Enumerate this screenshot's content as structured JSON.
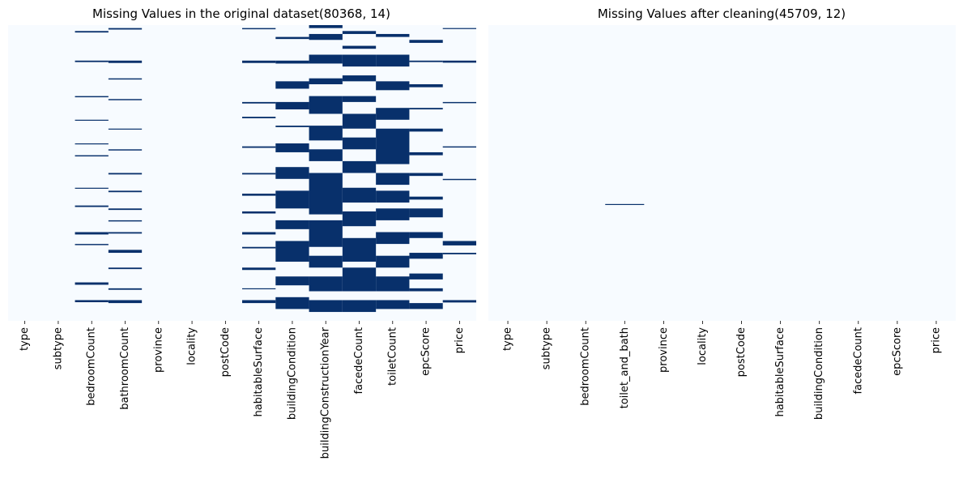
{
  "charts": [
    {
      "type": "heatmap",
      "title": "Missing Values in the original dataset(80368, 14)",
      "columns": [
        "type",
        "subtype",
        "bedroomCount",
        "bathroomCount",
        "province",
        "locality",
        "postCode",
        "habitableSurface",
        "buildingCondition",
        "buildingConstructionYear",
        "facedeCount",
        "toiletCount",
        "epcScore",
        "price"
      ],
      "value_legend": {
        "present": 0,
        "missing": 1
      },
      "missing_rows": {
        "bedroomCount": [
          [
            0.02,
            0.025
          ],
          [
            0.12,
            0.125
          ],
          [
            0.24,
            0.244
          ],
          [
            0.32,
            0.323
          ],
          [
            0.4,
            0.403
          ],
          [
            0.44,
            0.444
          ],
          [
            0.55,
            0.553
          ],
          [
            0.61,
            0.615
          ],
          [
            0.7,
            0.708
          ],
          [
            0.74,
            0.744
          ],
          [
            0.87,
            0.878
          ],
          [
            0.93,
            0.937
          ]
        ],
        "bathroomCount": [
          [
            0.01,
            0.015
          ],
          [
            0.12,
            0.128
          ],
          [
            0.18,
            0.184
          ],
          [
            0.25,
            0.254
          ],
          [
            0.35,
            0.353
          ],
          [
            0.42,
            0.424
          ],
          [
            0.5,
            0.505
          ],
          [
            0.56,
            0.565
          ],
          [
            0.62,
            0.625
          ],
          [
            0.66,
            0.664
          ],
          [
            0.7,
            0.705
          ],
          [
            0.76,
            0.77
          ],
          [
            0.82,
            0.825
          ],
          [
            0.89,
            0.895
          ],
          [
            0.93,
            0.94
          ]
        ],
        "habitableSurface": [
          [
            0.01,
            0.014
          ],
          [
            0.12,
            0.128
          ],
          [
            0.26,
            0.265
          ],
          [
            0.31,
            0.315
          ],
          [
            0.41,
            0.415
          ],
          [
            0.5,
            0.505
          ],
          [
            0.57,
            0.577
          ],
          [
            0.63,
            0.637
          ],
          [
            0.7,
            0.708
          ],
          [
            0.75,
            0.755
          ],
          [
            0.82,
            0.828
          ],
          [
            0.89,
            0.893
          ],
          [
            0.93,
            0.94
          ]
        ],
        "buildingCondition": [
          [
            0.04,
            0.047
          ],
          [
            0.12,
            0.13
          ],
          [
            0.19,
            0.215
          ],
          [
            0.26,
            0.285
          ],
          [
            0.34,
            0.345
          ],
          [
            0.4,
            0.43
          ],
          [
            0.48,
            0.52
          ],
          [
            0.56,
            0.62
          ],
          [
            0.66,
            0.69
          ],
          [
            0.73,
            0.8
          ],
          [
            0.85,
            0.88
          ],
          [
            0.92,
            0.96
          ]
        ],
        "buildingConstructionYear": [
          [
            0.0,
            0.01
          ],
          [
            0.03,
            0.05
          ],
          [
            0.1,
            0.13
          ],
          [
            0.18,
            0.2
          ],
          [
            0.24,
            0.3
          ],
          [
            0.34,
            0.39
          ],
          [
            0.42,
            0.46
          ],
          [
            0.5,
            0.64
          ],
          [
            0.66,
            0.75
          ],
          [
            0.78,
            0.82
          ],
          [
            0.85,
            0.9
          ],
          [
            0.93,
            0.97
          ]
        ],
        "facedeCount": [
          [
            0.02,
            0.03
          ],
          [
            0.07,
            0.08
          ],
          [
            0.1,
            0.14
          ],
          [
            0.17,
            0.19
          ],
          [
            0.24,
            0.26
          ],
          [
            0.3,
            0.35
          ],
          [
            0.38,
            0.42
          ],
          [
            0.46,
            0.5
          ],
          [
            0.55,
            0.6
          ],
          [
            0.63,
            0.68
          ],
          [
            0.72,
            0.8
          ],
          [
            0.82,
            0.9
          ],
          [
            0.93,
            0.97
          ]
        ],
        "toiletCount": [
          [
            0.03,
            0.04
          ],
          [
            0.1,
            0.14
          ],
          [
            0.19,
            0.22
          ],
          [
            0.28,
            0.32
          ],
          [
            0.35,
            0.4
          ],
          [
            0.4,
            0.47
          ],
          [
            0.5,
            0.54
          ],
          [
            0.56,
            0.6
          ],
          [
            0.62,
            0.66
          ],
          [
            0.7,
            0.74
          ],
          [
            0.78,
            0.82
          ],
          [
            0.85,
            0.9
          ],
          [
            0.93,
            0.96
          ]
        ],
        "epcScore": [
          [
            0.05,
            0.06
          ],
          [
            0.12,
            0.125
          ],
          [
            0.2,
            0.21
          ],
          [
            0.28,
            0.285
          ],
          [
            0.35,
            0.36
          ],
          [
            0.43,
            0.44
          ],
          [
            0.5,
            0.51
          ],
          [
            0.58,
            0.59
          ],
          [
            0.62,
            0.65
          ],
          [
            0.7,
            0.72
          ],
          [
            0.77,
            0.79
          ],
          [
            0.84,
            0.86
          ],
          [
            0.89,
            0.9
          ],
          [
            0.94,
            0.96
          ]
        ],
        "price": [
          [
            0.01,
            0.013
          ],
          [
            0.12,
            0.127
          ],
          [
            0.26,
            0.264
          ],
          [
            0.41,
            0.414
          ],
          [
            0.52,
            0.524
          ],
          [
            0.73,
            0.745
          ],
          [
            0.77,
            0.775
          ],
          [
            0.93,
            0.938
          ]
        ]
      }
    },
    {
      "type": "heatmap",
      "title": "Missing Values after cleaning(45709, 12)",
      "columns": [
        "type",
        "subtype",
        "bedroomCount",
        "toilet_and_bath",
        "province",
        "locality",
        "postCode",
        "habitableSurface",
        "buildingCondition",
        "facedeCount",
        "epcScore",
        "price"
      ],
      "value_legend": {
        "present": 0,
        "missing": 1
      },
      "missing_rows": {
        "toilet_and_bath": [
          [
            0.605,
            0.607
          ]
        ]
      }
    }
  ],
  "colors": {
    "missing": "#08306b",
    "present": "#f7fbff"
  },
  "chart_data": [
    {
      "type": "heatmap",
      "title": "Missing Values in the original dataset(80368, 14)",
      "categories": [
        "type",
        "subtype",
        "bedroomCount",
        "bathroomCount",
        "province",
        "locality",
        "postCode",
        "habitableSurface",
        "buildingCondition",
        "buildingConstructionYear",
        "facedeCount",
        "toiletCount",
        "epcScore",
        "price"
      ],
      "legend": "none"
    },
    {
      "type": "heatmap",
      "title": "Missing Values after cleaning(45709, 12)",
      "categories": [
        "type",
        "subtype",
        "bedroomCount",
        "toilet_and_bath",
        "province",
        "locality",
        "postCode",
        "habitableSurface",
        "buildingCondition",
        "facedeCount",
        "epcScore",
        "price"
      ],
      "legend": "none"
    }
  ]
}
